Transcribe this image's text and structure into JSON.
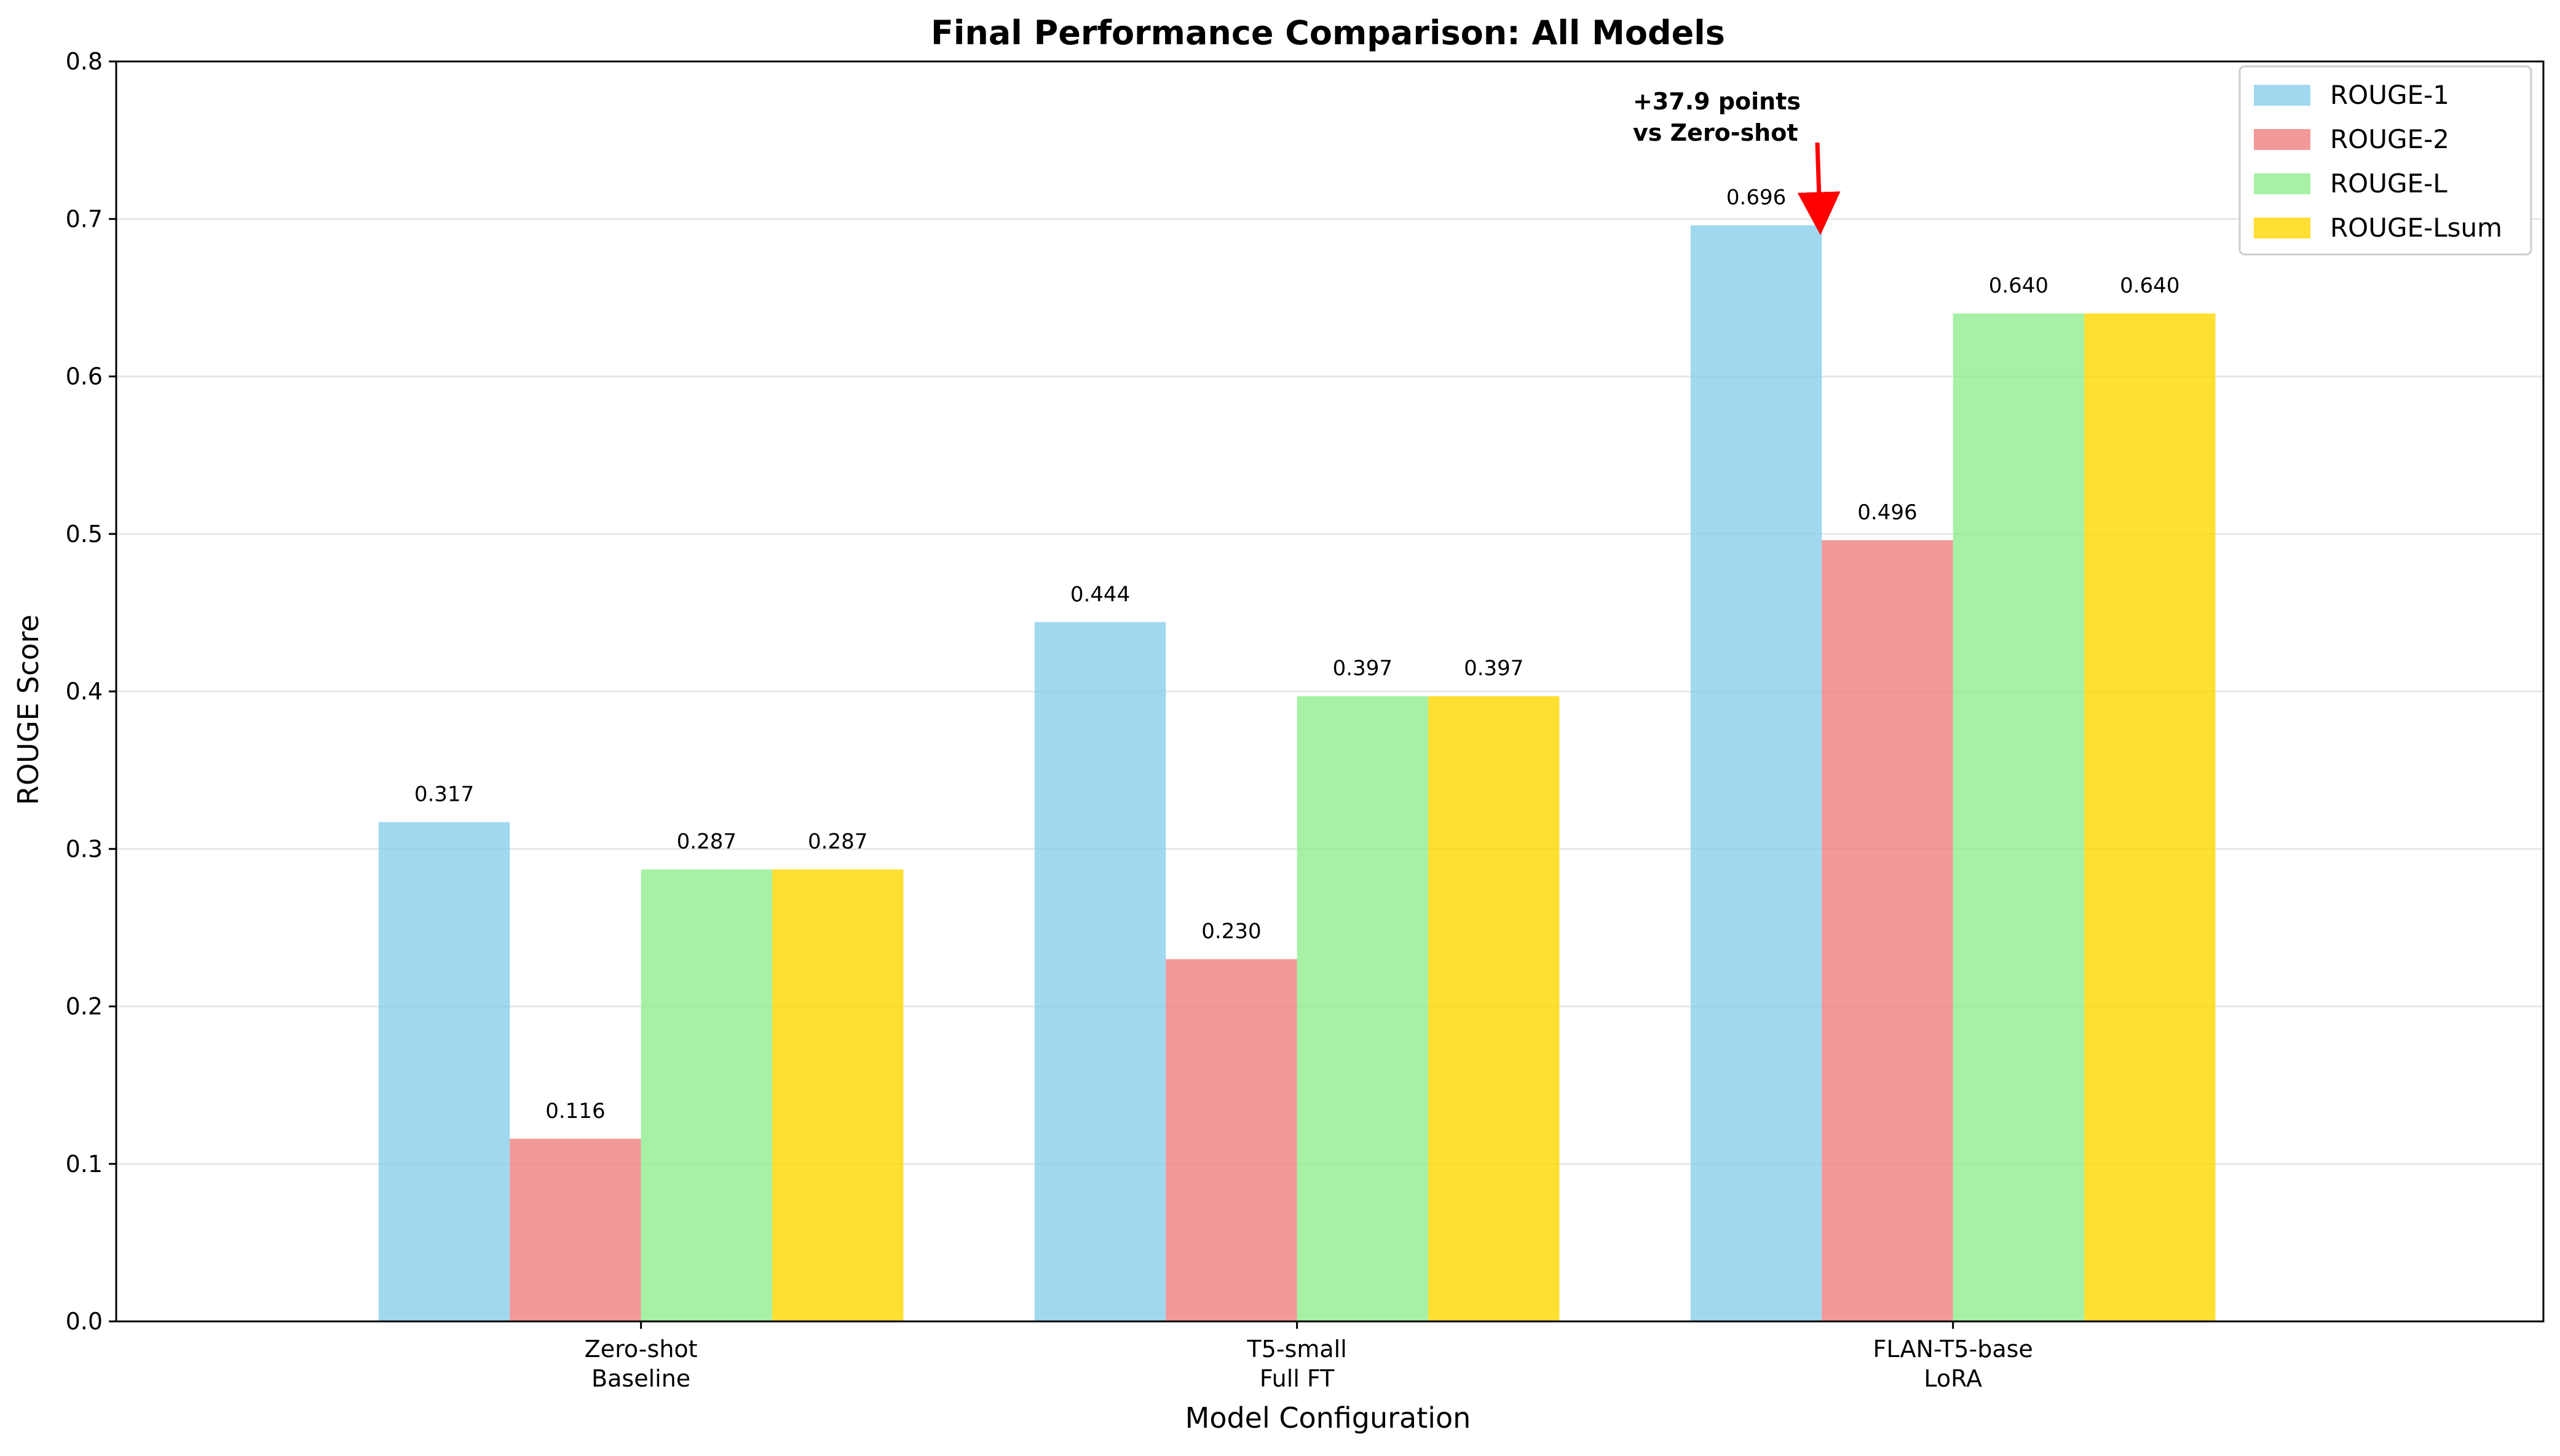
{
  "chart_data": {
    "type": "bar",
    "title": "Final Performance Comparison: All Models",
    "xlabel": "Model Configuration",
    "ylabel": "ROUGE Score",
    "ylim": [
      0,
      0.8
    ],
    "yticks": [
      "0.0",
      "0.1",
      "0.2",
      "0.3",
      "0.4",
      "0.5",
      "0.6",
      "0.7",
      "0.8"
    ],
    "grid": true,
    "legend_position": "top-right",
    "categories": [
      {
        "line1": "Zero-shot",
        "line2": "Baseline"
      },
      {
        "line1": "T5-small",
        "line2": "Full FT"
      },
      {
        "line1": "FLAN-T5-base",
        "line2": "LoRA"
      }
    ],
    "series": [
      {
        "name": "ROUGE-1",
        "color": "#87ceeb",
        "values": [
          0.317,
          0.444,
          0.696
        ],
        "labels": [
          "0.317",
          "0.444",
          "0.696"
        ]
      },
      {
        "name": "ROUGE-2",
        "color": "#f08080",
        "values": [
          0.116,
          0.23,
          0.496
        ],
        "labels": [
          "0.116",
          "0.230",
          "0.496"
        ]
      },
      {
        "name": "ROUGE-L",
        "color": "#90ee90",
        "values": [
          0.287,
          0.397,
          0.64
        ],
        "labels": [
          "0.287",
          "0.397",
          "0.640"
        ]
      },
      {
        "name": "ROUGE-Lsum",
        "color": "#ffd700",
        "values": [
          0.287,
          0.397,
          0.64
        ],
        "labels": [
          "0.287",
          "0.397",
          "0.640"
        ]
      }
    ],
    "annotation": {
      "line1": "+37.9 points",
      "line2": "vs Zero-shot",
      "color": "#ff0000",
      "target_category": 2,
      "target_value": 0.696
    }
  }
}
